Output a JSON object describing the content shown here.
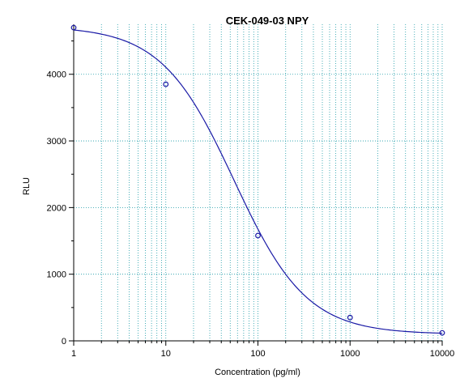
{
  "chart_data": {
    "type": "scatter",
    "title": "CEK-049-03  NPY",
    "xlabel": "Concentration (pg/ml)",
    "ylabel": "RLU",
    "x_scale": "log",
    "xlim": [
      1,
      10000
    ],
    "ylim": [
      0,
      4750
    ],
    "x_ticks": [
      1,
      10,
      100,
      1000,
      10000
    ],
    "x_tick_labels": [
      "1",
      "10",
      "100",
      "1000",
      "10000"
    ],
    "y_ticks": [
      0,
      1000,
      2000,
      3000,
      4000
    ],
    "y_tick_labels": [
      "0",
      "1000",
      "2000",
      "3000",
      "4000"
    ],
    "grid": true,
    "colors": {
      "curve": "#1a1aa6",
      "points": "#1a1aa6",
      "grid": "#1a9aa6",
      "axis": "#000000"
    },
    "series": [
      {
        "points": [
          {
            "x": 1,
            "y": 4700
          },
          {
            "x": 10,
            "y": 3850
          },
          {
            "x": 100,
            "y": 1580
          },
          {
            "x": 1000,
            "y": 350
          },
          {
            "x": 10000,
            "y": 120
          }
        ]
      }
    ],
    "fit": {
      "model": "4PL",
      "top": 4720,
      "bottom": 100,
      "ec50": 55,
      "hill": 1.1
    }
  }
}
